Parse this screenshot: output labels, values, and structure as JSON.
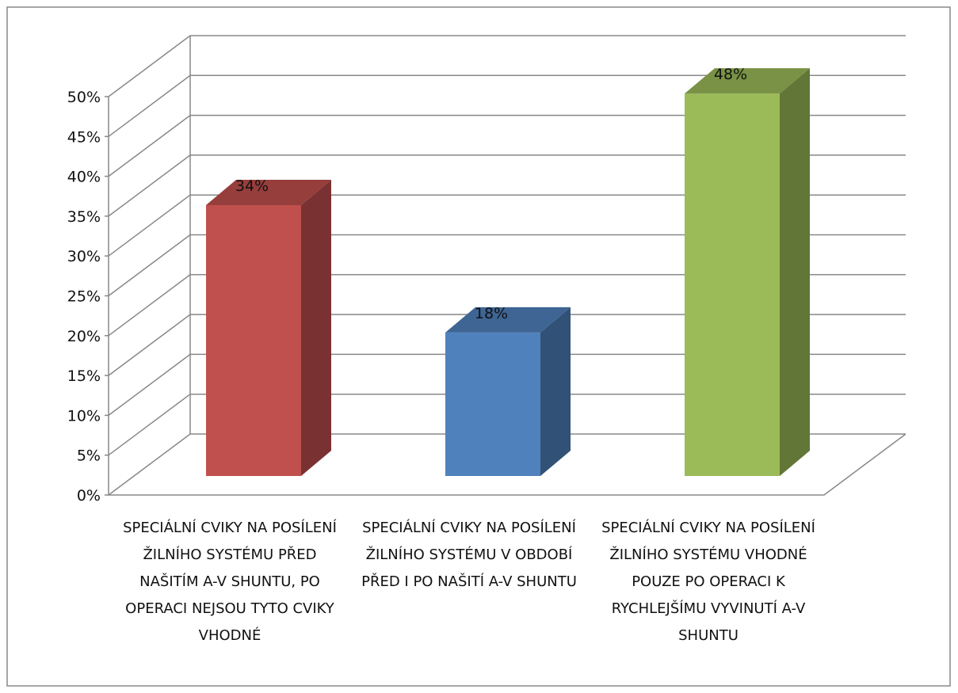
{
  "chart_data": {
    "type": "bar3d",
    "categories": [
      "SPECIÁLNÍ CVIKY NA POSÍLENÍ ŽILNÍHO SYSTÉMU PŘED NAŠITÍM A-V SHUNTU, PO OPERACI NEJSOU TYTO CVIKY VHODNÉ",
      "SPECIÁLNÍ CVIKY NA POSÍLENÍ ŽILNÍHO SYSTÉMU V OBDOBÍ PŘED I PO NAŠITÍ A-V SHUNTU",
      "SPECIÁLNÍ CVIKY NA POSÍLENÍ ŽILNÍHO SYSTÉMU VHODNÉ POUZE PO OPERACI K RYCHLEJŠÍMU VYVINUTÍ A-V SHUNTU"
    ],
    "values": [
      34,
      18,
      48
    ],
    "value_labels": [
      "34%",
      "18%",
      "48%"
    ],
    "colors": [
      "#c0504d",
      "#4f81bd",
      "#9bbb59"
    ],
    "ylim": [
      0,
      50
    ],
    "yticks": [
      {
        "value": 0,
        "label": "0%"
      },
      {
        "value": 5,
        "label": "5%"
      },
      {
        "value": 10,
        "label": "10%"
      },
      {
        "value": 15,
        "label": "15%"
      },
      {
        "value": 20,
        "label": "20%"
      },
      {
        "value": 25,
        "label": "25%"
      },
      {
        "value": 30,
        "label": "30%"
      },
      {
        "value": 35,
        "label": "35%"
      },
      {
        "value": 40,
        "label": "40%"
      },
      {
        "value": 45,
        "label": "45%"
      },
      {
        "value": 50,
        "label": "50%"
      }
    ],
    "grid": true
  }
}
